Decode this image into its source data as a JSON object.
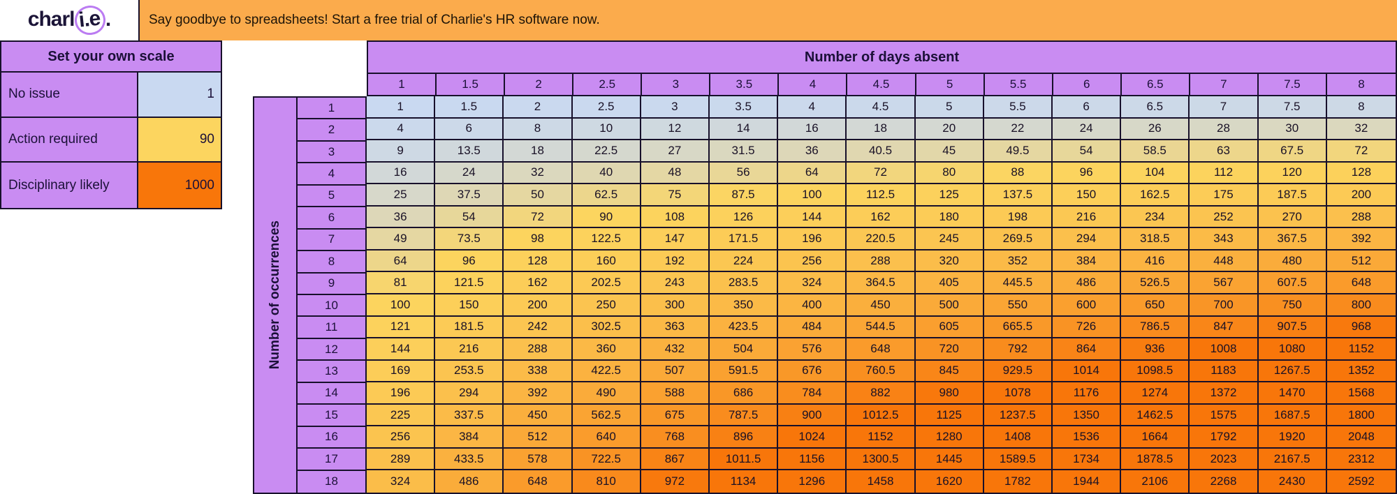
{
  "banner": {
    "logo": {
      "prefix": "charl",
      "circled": "i.e",
      "suffix": "."
    },
    "message": "Say goodbye to spreadsheets! Start a free trial of Charlie's HR software now."
  },
  "scale": {
    "title": "Set your own scale",
    "rows": [
      {
        "label": "No issue",
        "value": "1",
        "color": "#c9d9f1"
      },
      {
        "label": "Action required",
        "value": "90",
        "color": "#fcd55f"
      },
      {
        "label": "Disciplinary likely",
        "value": "1000",
        "color": "#f8760a"
      }
    ]
  },
  "table": {
    "col_axis_title": "Number of days absent",
    "row_axis_title": "Number of occurrences",
    "col_headers": [
      "1",
      "1.5",
      "2",
      "2.5",
      "3",
      "3.5",
      "4",
      "4.5",
      "5",
      "5.5",
      "6",
      "6.5",
      "7",
      "7.5",
      "8"
    ],
    "row_headers": [
      "1",
      "2",
      "3",
      "4",
      "5",
      "6",
      "7",
      "8",
      "9",
      "10",
      "11",
      "12",
      "13",
      "14",
      "15",
      "16",
      "17",
      "18"
    ],
    "cells": [
      [
        "1",
        "1.5",
        "2",
        "2.5",
        "3",
        "3.5",
        "4",
        "4.5",
        "5",
        "5.5",
        "6",
        "6.5",
        "7",
        "7.5",
        "8"
      ],
      [
        "4",
        "6",
        "8",
        "10",
        "12",
        "14",
        "16",
        "18",
        "20",
        "22",
        "24",
        "26",
        "28",
        "30",
        "32"
      ],
      [
        "9",
        "13.5",
        "18",
        "22.5",
        "27",
        "31.5",
        "36",
        "40.5",
        "45",
        "49.5",
        "54",
        "58.5",
        "63",
        "67.5",
        "72"
      ],
      [
        "16",
        "24",
        "32",
        "40",
        "48",
        "56",
        "64",
        "72",
        "80",
        "88",
        "96",
        "104",
        "112",
        "120",
        "128"
      ],
      [
        "25",
        "37.5",
        "50",
        "62.5",
        "75",
        "87.5",
        "100",
        "112.5",
        "125",
        "137.5",
        "150",
        "162.5",
        "175",
        "187.5",
        "200"
      ],
      [
        "36",
        "54",
        "72",
        "90",
        "108",
        "126",
        "144",
        "162",
        "180",
        "198",
        "216",
        "234",
        "252",
        "270",
        "288"
      ],
      [
        "49",
        "73.5",
        "98",
        "122.5",
        "147",
        "171.5",
        "196",
        "220.5",
        "245",
        "269.5",
        "294",
        "318.5",
        "343",
        "367.5",
        "392"
      ],
      [
        "64",
        "96",
        "128",
        "160",
        "192",
        "224",
        "256",
        "288",
        "320",
        "352",
        "384",
        "416",
        "448",
        "480",
        "512"
      ],
      [
        "81",
        "121.5",
        "162",
        "202.5",
        "243",
        "283.5",
        "324",
        "364.5",
        "405",
        "445.5",
        "486",
        "526.5",
        "567",
        "607.5",
        "648"
      ],
      [
        "100",
        "150",
        "200",
        "250",
        "300",
        "350",
        "400",
        "450",
        "500",
        "550",
        "600",
        "650",
        "700",
        "750",
        "800"
      ],
      [
        "121",
        "181.5",
        "242",
        "302.5",
        "363",
        "423.5",
        "484",
        "544.5",
        "605",
        "665.5",
        "726",
        "786.5",
        "847",
        "907.5",
        "968"
      ],
      [
        "144",
        "216",
        "288",
        "360",
        "432",
        "504",
        "576",
        "648",
        "720",
        "792",
        "864",
        "936",
        "1008",
        "1080",
        "1152"
      ],
      [
        "169",
        "253.5",
        "338",
        "422.5",
        "507",
        "591.5",
        "676",
        "760.5",
        "845",
        "929.5",
        "1014",
        "1098.5",
        "1183",
        "1267.5",
        "1352"
      ],
      [
        "196",
        "294",
        "392",
        "490",
        "588",
        "686",
        "784",
        "882",
        "980",
        "1078",
        "1176",
        "1274",
        "1372",
        "1470",
        "1568"
      ],
      [
        "225",
        "337.5",
        "450",
        "562.5",
        "675",
        "787.5",
        "900",
        "1012.5",
        "1125",
        "1237.5",
        "1350",
        "1462.5",
        "1575",
        "1687.5",
        "1800"
      ],
      [
        "256",
        "384",
        "512",
        "640",
        "768",
        "896",
        "1024",
        "1152",
        "1280",
        "1408",
        "1536",
        "1664",
        "1792",
        "1920",
        "2048"
      ],
      [
        "289",
        "433.5",
        "578",
        "722.5",
        "867",
        "1011.5",
        "1156",
        "1300.5",
        "1445",
        "1589.5",
        "1734",
        "1878.5",
        "2023",
        "2167.5",
        "2312"
      ],
      [
        "324",
        "486",
        "648",
        "810",
        "972",
        "1134",
        "1296",
        "1458",
        "1620",
        "1782",
        "1944",
        "2106",
        "2268",
        "2430",
        "2592"
      ]
    ]
  },
  "colors": {
    "banner_orange": "#fbab4c",
    "header_purple": "#c98cf2",
    "border": "#17102b",
    "ink": "#1b1038",
    "logo_circle_purple": "#bb7cf2",
    "heat_min": "#c9d9f1",
    "heat_mid": "#fcd55f",
    "heat_max": "#f8760a"
  }
}
